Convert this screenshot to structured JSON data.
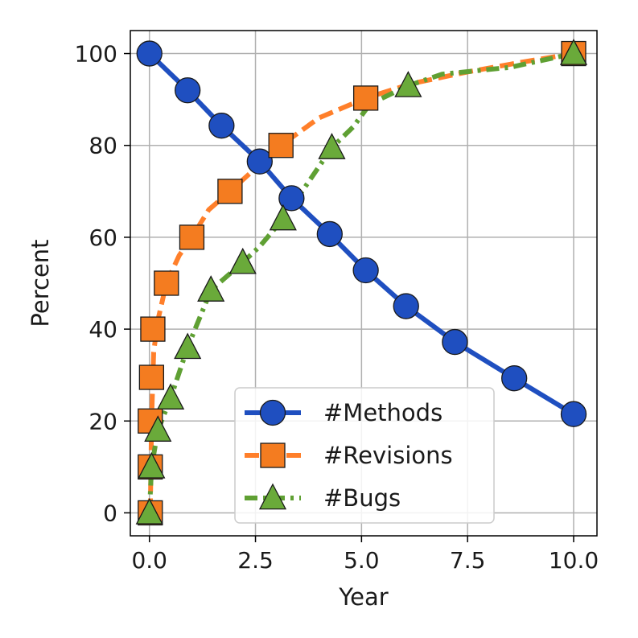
{
  "chart_data": {
    "type": "line",
    "title": "",
    "xlabel": "Year",
    "ylabel": "Percent",
    "xlim": [
      -0.45,
      10.55
    ],
    "ylim": [
      -5,
      105
    ],
    "xticks": [
      0.0,
      2.5,
      5.0,
      7.5,
      10.0
    ],
    "xtick_labels": [
      "0.0",
      "2.5",
      "5.0",
      "7.5",
      "10.0"
    ],
    "yticks": [
      0,
      20,
      40,
      60,
      80,
      100
    ],
    "ytick_labels": [
      "0",
      "20",
      "40",
      "60",
      "80",
      "100"
    ],
    "grid": true,
    "legend": {
      "position": "bottom-right"
    },
    "series": [
      {
        "name": "#Methods",
        "color": "#1f4fc0",
        "line_style": "solid",
        "marker": "circle",
        "marker_color": "#1f4fc0",
        "x": [
          0.0,
          0.9,
          1.7,
          2.6,
          3.35,
          4.25,
          5.1,
          6.05,
          7.2,
          8.6,
          10.0
        ],
        "y": [
          100,
          92,
          84.3,
          76.5,
          68.5,
          60.7,
          52.8,
          45,
          37.2,
          29.3,
          21.5
        ]
      },
      {
        "name": "#Revisions",
        "color": "#ff7f2a",
        "line_style": "dashed",
        "marker": "square",
        "marker_color": "#f47c20",
        "x": [
          0.02,
          0.02,
          0.02,
          0.05,
          0.08,
          0.4,
          1.0,
          1.9,
          3.1,
          5.1,
          10.0
        ],
        "y": [
          0,
          10,
          20,
          29.5,
          40,
          50,
          60,
          70,
          80,
          90.3,
          100
        ],
        "line_x": [
          0.02,
          0.05,
          0.1,
          0.2,
          0.4,
          0.7,
          1.0,
          1.4,
          1.9,
          2.5,
          3.1,
          4.0,
          5.1,
          6.2,
          7.5,
          8.7,
          10.0
        ],
        "line_y": [
          0,
          20,
          35,
          42,
          50,
          56,
          60,
          66,
          70,
          75,
          80,
          86,
          90.3,
          93.5,
          96,
          98,
          100
        ]
      },
      {
        "name": "#Bugs",
        "color": "#5fa033",
        "line_style": "dashdot",
        "marker": "triangle",
        "marker_color": "#6aaa3a",
        "x": [
          0.0,
          0.05,
          0.2,
          0.5,
          0.9,
          1.45,
          2.2,
          3.15,
          4.3,
          6.1,
          10.0
        ],
        "y": [
          0,
          10,
          18,
          25,
          36,
          48.5,
          54.5,
          64,
          79.5,
          93,
          100
        ],
        "line_x": [
          0.0,
          0.05,
          0.2,
          0.5,
          0.9,
          1.45,
          2.2,
          2.6,
          3.15,
          3.6,
          4.3,
          4.8,
          5.2,
          6.1,
          6.9,
          8.5,
          10.0
        ],
        "line_y": [
          0,
          10,
          18,
          25,
          36,
          48.5,
          54.5,
          58,
          64,
          70,
          79.5,
          84,
          89,
          93,
          95.5,
          97,
          100
        ]
      }
    ]
  }
}
